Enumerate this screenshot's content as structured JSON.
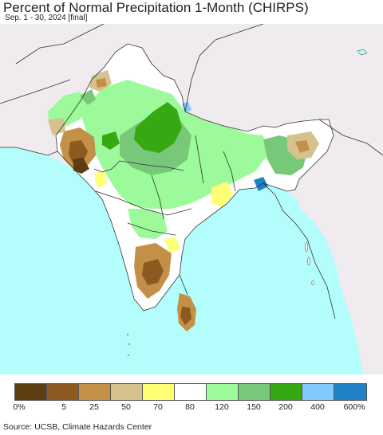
{
  "title": "Percent of Normal Precipitation 1-Month (CHIRPS)",
  "subtitle": "Sep. 1 - 30, 2024 [final]",
  "source": "Source: UCSB, Climate Hazards Center",
  "map": {
    "region": "South Asia",
    "colors": {
      "ocean": "#b3fdfd",
      "outside_land": "#efebef",
      "boundary": "#333333"
    }
  },
  "legend": {
    "colors": [
      "#5c3e12",
      "#8c5a20",
      "#c49048",
      "#d6c28c",
      "#ffff73",
      "#ffffff",
      "#9dfa9b",
      "#78c87a",
      "#36a812",
      "#7fc9ff",
      "#1f82c8"
    ],
    "labels": [
      "0%",
      "5",
      "25",
      "50",
      "70",
      "80",
      "120",
      "150",
      "200",
      "400",
      "600%"
    ]
  }
}
